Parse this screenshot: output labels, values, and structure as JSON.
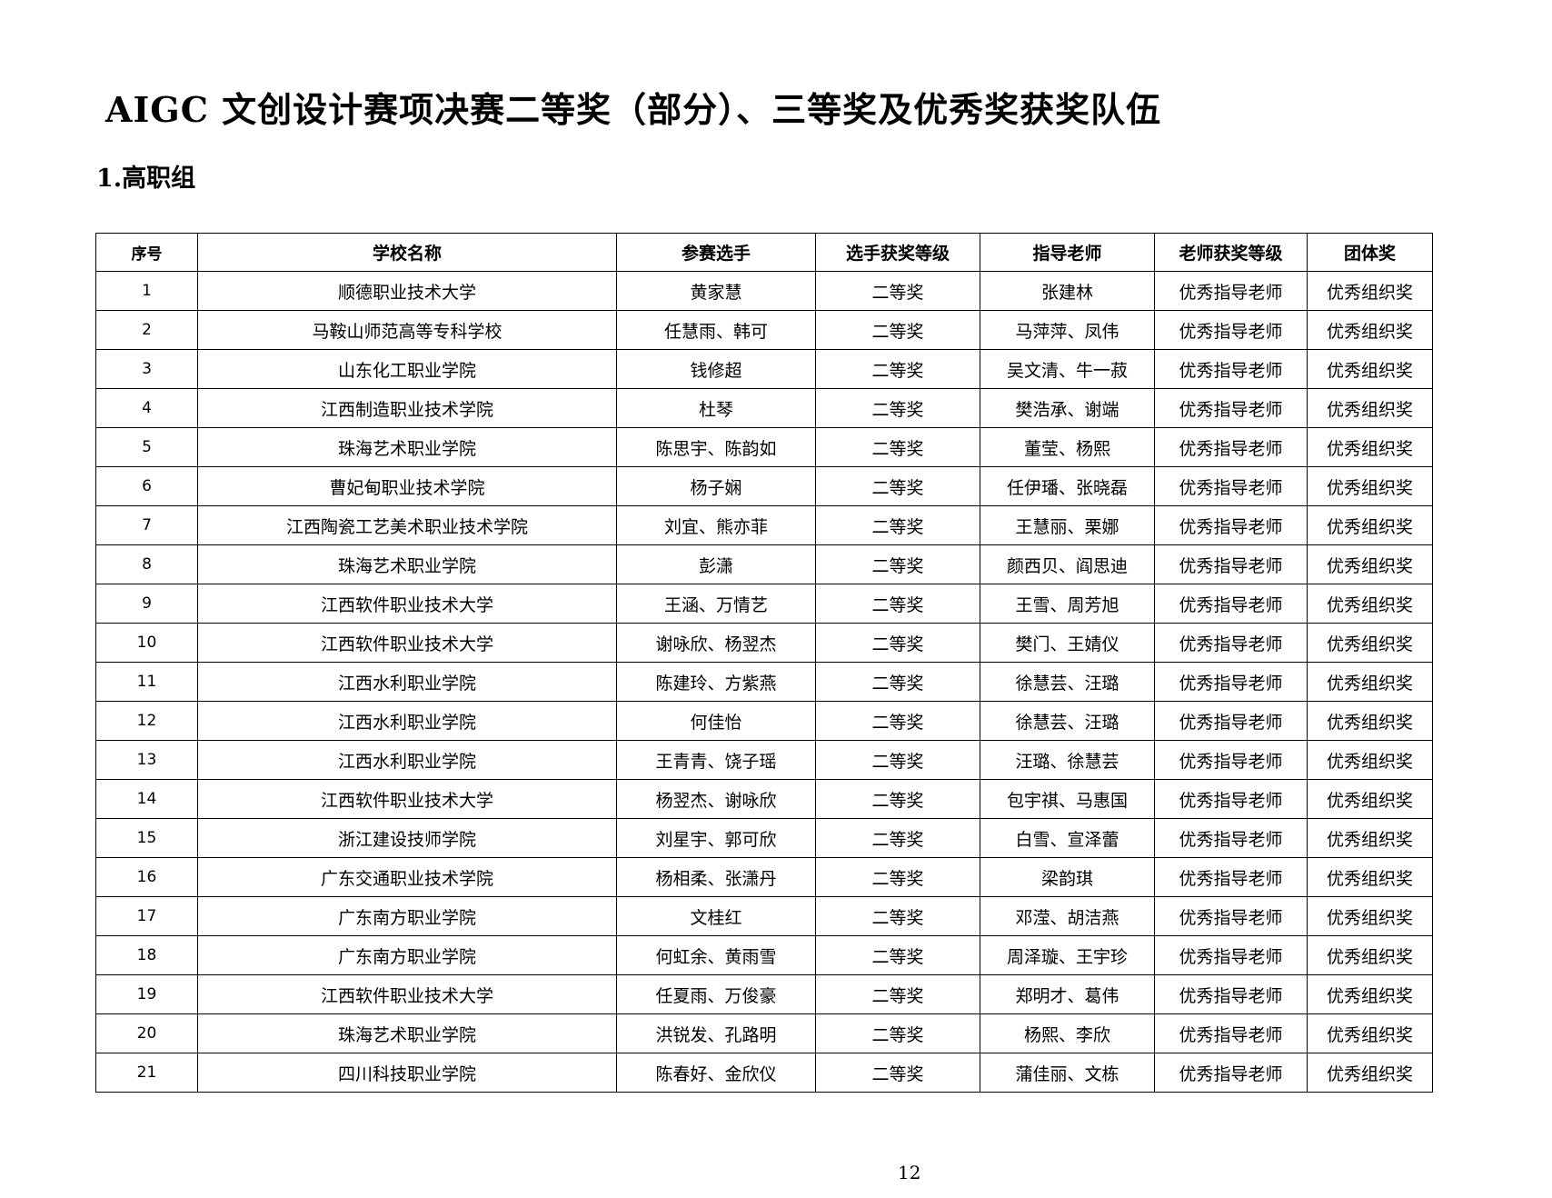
{
  "title": "AIGC  文创设计赛项决赛二等奖（部分）、三等奖及优秀奖获奖队伍",
  "section": "1.高职组",
  "table": {
    "headers": [
      "序号",
      "学校名称",
      "参赛选手",
      "选手获奖等级",
      "指导老师",
      "老师获奖等级",
      "团体奖"
    ],
    "rows": [
      [
        "1",
        "顺德职业技术大学",
        "黄家慧",
        "二等奖",
        "张建林",
        "优秀指导老师",
        "优秀组织奖"
      ],
      [
        "2",
        "马鞍山师范高等专科学校",
        "任慧雨、韩可",
        "二等奖",
        "马萍萍、凤伟",
        "优秀指导老师",
        "优秀组织奖"
      ],
      [
        "3",
        "山东化工职业学院",
        "钱修超",
        "二等奖",
        "吴文清、牛一菽",
        "优秀指导老师",
        "优秀组织奖"
      ],
      [
        "4",
        "江西制造职业技术学院",
        "杜琴",
        "二等奖",
        "樊浩承、谢端",
        "优秀指导老师",
        "优秀组织奖"
      ],
      [
        "5",
        "珠海艺术职业学院",
        "陈思宇、陈韵如",
        "二等奖",
        "董莹、杨熙",
        "优秀指导老师",
        "优秀组织奖"
      ],
      [
        "6",
        "曹妃甸职业技术学院",
        "杨子娴",
        "二等奖",
        "任伊璠、张晓磊",
        "优秀指导老师",
        "优秀组织奖"
      ],
      [
        "7",
        "江西陶瓷工艺美术职业技术学院",
        "刘宜、熊亦菲",
        "二等奖",
        "王慧丽、栗娜",
        "优秀指导老师",
        "优秀组织奖"
      ],
      [
        "8",
        "珠海艺术职业学院",
        "彭潇",
        "二等奖",
        "颜西贝、阎思迪",
        "优秀指导老师",
        "优秀组织奖"
      ],
      [
        "9",
        "江西软件职业技术大学",
        "王涵、万情艺",
        "二等奖",
        "王雪、周芳旭",
        "优秀指导老师",
        "优秀组织奖"
      ],
      [
        "10",
        "江西软件职业技术大学",
        "谢咏欣、杨翌杰",
        "二等奖",
        "樊门、王婧仪",
        "优秀指导老师",
        "优秀组织奖"
      ],
      [
        "11",
        "江西水利职业学院",
        "陈建玲、方紫燕",
        "二等奖",
        "徐慧芸、汪璐",
        "优秀指导老师",
        "优秀组织奖"
      ],
      [
        "12",
        "江西水利职业学院",
        "何佳怡",
        "二等奖",
        "徐慧芸、汪璐",
        "优秀指导老师",
        "优秀组织奖"
      ],
      [
        "13",
        "江西水利职业学院",
        "王青青、饶子瑶",
        "二等奖",
        "汪璐、徐慧芸",
        "优秀指导老师",
        "优秀组织奖"
      ],
      [
        "14",
        "江西软件职业技术大学",
        "杨翌杰、谢咏欣",
        "二等奖",
        "包宇祺、马惠国",
        "优秀指导老师",
        "优秀组织奖"
      ],
      [
        "15",
        "浙江建设技师学院",
        "刘星宇、郭可欣",
        "二等奖",
        "白雪、宣泽蕾",
        "优秀指导老师",
        "优秀组织奖"
      ],
      [
        "16",
        "广东交通职业技术学院",
        "杨相柔、张潇丹",
        "二等奖",
        "梁韵琪",
        "优秀指导老师",
        "优秀组织奖"
      ],
      [
        "17",
        "广东南方职业学院",
        "文桂红",
        "二等奖",
        "邓滢、胡洁燕",
        "优秀指导老师",
        "优秀组织奖"
      ],
      [
        "18",
        "广东南方职业学院",
        "何虹余、黄雨雪",
        "二等奖",
        "周泽璇、王宇珍",
        "优秀指导老师",
        "优秀组织奖"
      ],
      [
        "19",
        "江西软件职业技术大学",
        "任夏雨、万俊豪",
        "二等奖",
        "郑明才、葛伟",
        "优秀指导老师",
        "优秀组织奖"
      ],
      [
        "20",
        "珠海艺术职业学院",
        "洪锐发、孔路明",
        "二等奖",
        "杨熙、李欣",
        "优秀指导老师",
        "优秀组织奖"
      ],
      [
        "21",
        "四川科技职业学院",
        "陈春好、金欣仪",
        "二等奖",
        "蒲佳丽、文栋",
        "优秀指导老师",
        "优秀组织奖"
      ]
    ]
  },
  "page_number": "12"
}
